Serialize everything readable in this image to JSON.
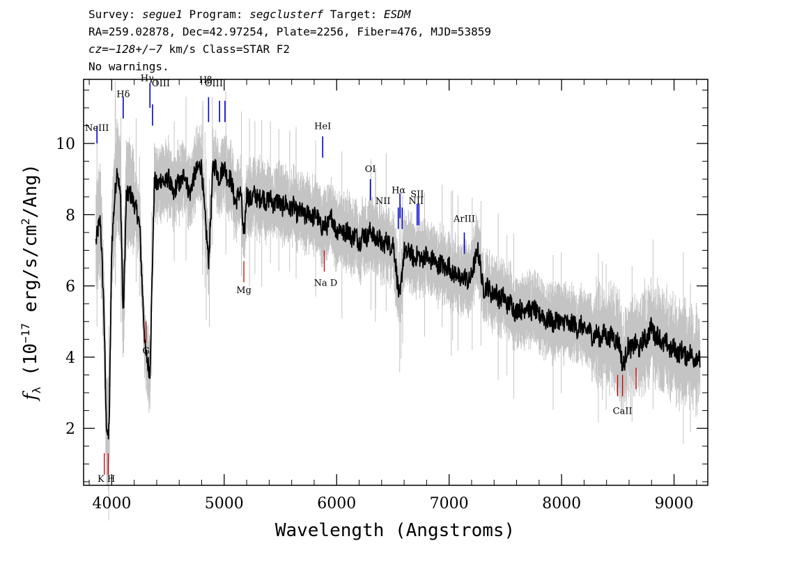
{
  "header": {
    "line1": {
      "survey_label": "Survey: ",
      "survey_value": "segue1",
      "program_label": " Program: ",
      "program_value": "segclusterf",
      "target_label": " Target: ",
      "target_value": "ESDM"
    },
    "line2": "RA=259.02878, Dec=42.97254, Plate=2256, Fiber=476, MJD=53859",
    "line3": {
      "cz_label": "cz",
      "cz_value": "=−128+/−7",
      "rest": " km/s Class=STAR F2"
    },
    "line4": "No warnings."
  },
  "chart_data": {
    "type": "line",
    "xlabel": "Wavelength (Angstroms)",
    "ylabel": "f_λ (10^-17 erg/s/cm^2/Ang)",
    "xlim": [
      3750,
      9300
    ],
    "ylim": [
      0.4,
      11.8
    ],
    "xticks": [
      4000,
      5000,
      6000,
      7000,
      8000,
      9000
    ],
    "yticks": [
      2,
      4,
      6,
      8,
      10
    ],
    "grid": false,
    "colors": {
      "flux": "#000000",
      "noise_band": "#c4c4c4",
      "emission": "#0000cc",
      "absorption": "#cc0000"
    },
    "series": [
      {
        "x": [
          3860,
          3900,
          3930,
          3950,
          3970,
          3980,
          4000,
          4050,
          4080,
          4102,
          4130,
          4200,
          4250,
          4300,
          4340,
          4380,
          4420,
          4500,
          4550,
          4600,
          4650,
          4700,
          4750,
          4800,
          4861,
          4900,
          4950,
          5000,
          5050,
          5100,
          5150,
          5175,
          5200,
          5300,
          5400,
          5500,
          5600,
          5700,
          5800,
          5890,
          5950,
          6000,
          6100,
          6200,
          6300,
          6400,
          6500,
          6563,
          6600,
          6700,
          6800,
          6900,
          7000,
          7100,
          7200,
          7250,
          7300,
          7400,
          7500,
          7600,
          7700,
          7800,
          7900,
          8000,
          8100,
          8200,
          8300,
          8400,
          8500,
          8542,
          8600,
          8700,
          8800,
          8900,
          9000,
          9100,
          9200,
          9230
        ],
        "y": [
          7.3,
          7.8,
          5.5,
          2.2,
          1.6,
          2.6,
          7.2,
          9.4,
          8.4,
          5.0,
          8.6,
          8.4,
          7.6,
          4.0,
          3.7,
          8.9,
          8.9,
          9.0,
          8.6,
          8.9,
          9.1,
          8.6,
          9.3,
          9.3,
          6.6,
          9.4,
          9.1,
          9.3,
          9.0,
          8.4,
          8.6,
          7.3,
          8.5,
          8.5,
          8.4,
          8.3,
          8.2,
          8.0,
          8.0,
          7.6,
          7.9,
          7.6,
          7.5,
          7.3,
          7.5,
          7.2,
          7.2,
          5.6,
          7.0,
          6.8,
          6.8,
          6.6,
          6.5,
          6.2,
          6.2,
          7.1,
          6.0,
          5.8,
          5.6,
          5.3,
          5.4,
          5.2,
          5.0,
          5.0,
          4.9,
          4.8,
          4.6,
          4.6,
          4.5,
          3.8,
          4.3,
          4.3,
          4.8,
          4.4,
          4.2,
          4.1,
          4.0,
          3.9
        ]
      }
    ],
    "emission_lines": [
      {
        "label": "NeIII",
        "x": 3869
      },
      {
        "label": "Hδ",
        "x": 4102
      },
      {
        "label": "Hγ",
        "x": 4340
      },
      {
        "label": "OIII",
        "x": 4363
      },
      {
        "label": "Hβ",
        "x": 4861
      },
      {
        "label": "OIII",
        "x": 4959
      },
      {
        "label": "OIII",
        "x": 5007
      },
      {
        "label": "HeI",
        "x": 5876
      },
      {
        "label": "OI",
        "x": 6300
      },
      {
        "label": "NII",
        "x": 6548
      },
      {
        "label": "Hα",
        "x": 6563
      },
      {
        "label": "NII",
        "x": 6583
      },
      {
        "label": "SII",
        "x": 6716
      },
      {
        "label": "SII",
        "x": 6731
      },
      {
        "label": "ArIII",
        "x": 7135
      }
    ],
    "absorption_lines": [
      {
        "label": "K",
        "x": 3934
      },
      {
        "label": "H",
        "x": 3969
      },
      {
        "label": "G",
        "x": 4305
      },
      {
        "label": "Mg",
        "x": 5175
      },
      {
        "label": "Na",
        "x": 5890
      },
      {
        "label": "D",
        "x": 5896
      },
      {
        "label": "CaII",
        "x": 8498
      },
      {
        "label": "CaII",
        "x": 8542
      },
      {
        "label": "CaII",
        "x": 8662
      }
    ],
    "visible_labels": {
      "NeIII": "NeIII",
      "Hd": "Hδ",
      "Hg": "Hγ",
      "OIII_a": "OIII",
      "Hb": "Hβ",
      "OIII_b": "OIII",
      "HeI": "HeI",
      "OI": "OI",
      "NII_a": "NII",
      "Ha": "Hα",
      "NII_b": "NII",
      "SII": "SII",
      "ArIII": "ArIII",
      "KH": "K H",
      "G": "G",
      "Mg": "Mg",
      "NaD": "Na  D",
      "CaII": "CaII"
    }
  }
}
